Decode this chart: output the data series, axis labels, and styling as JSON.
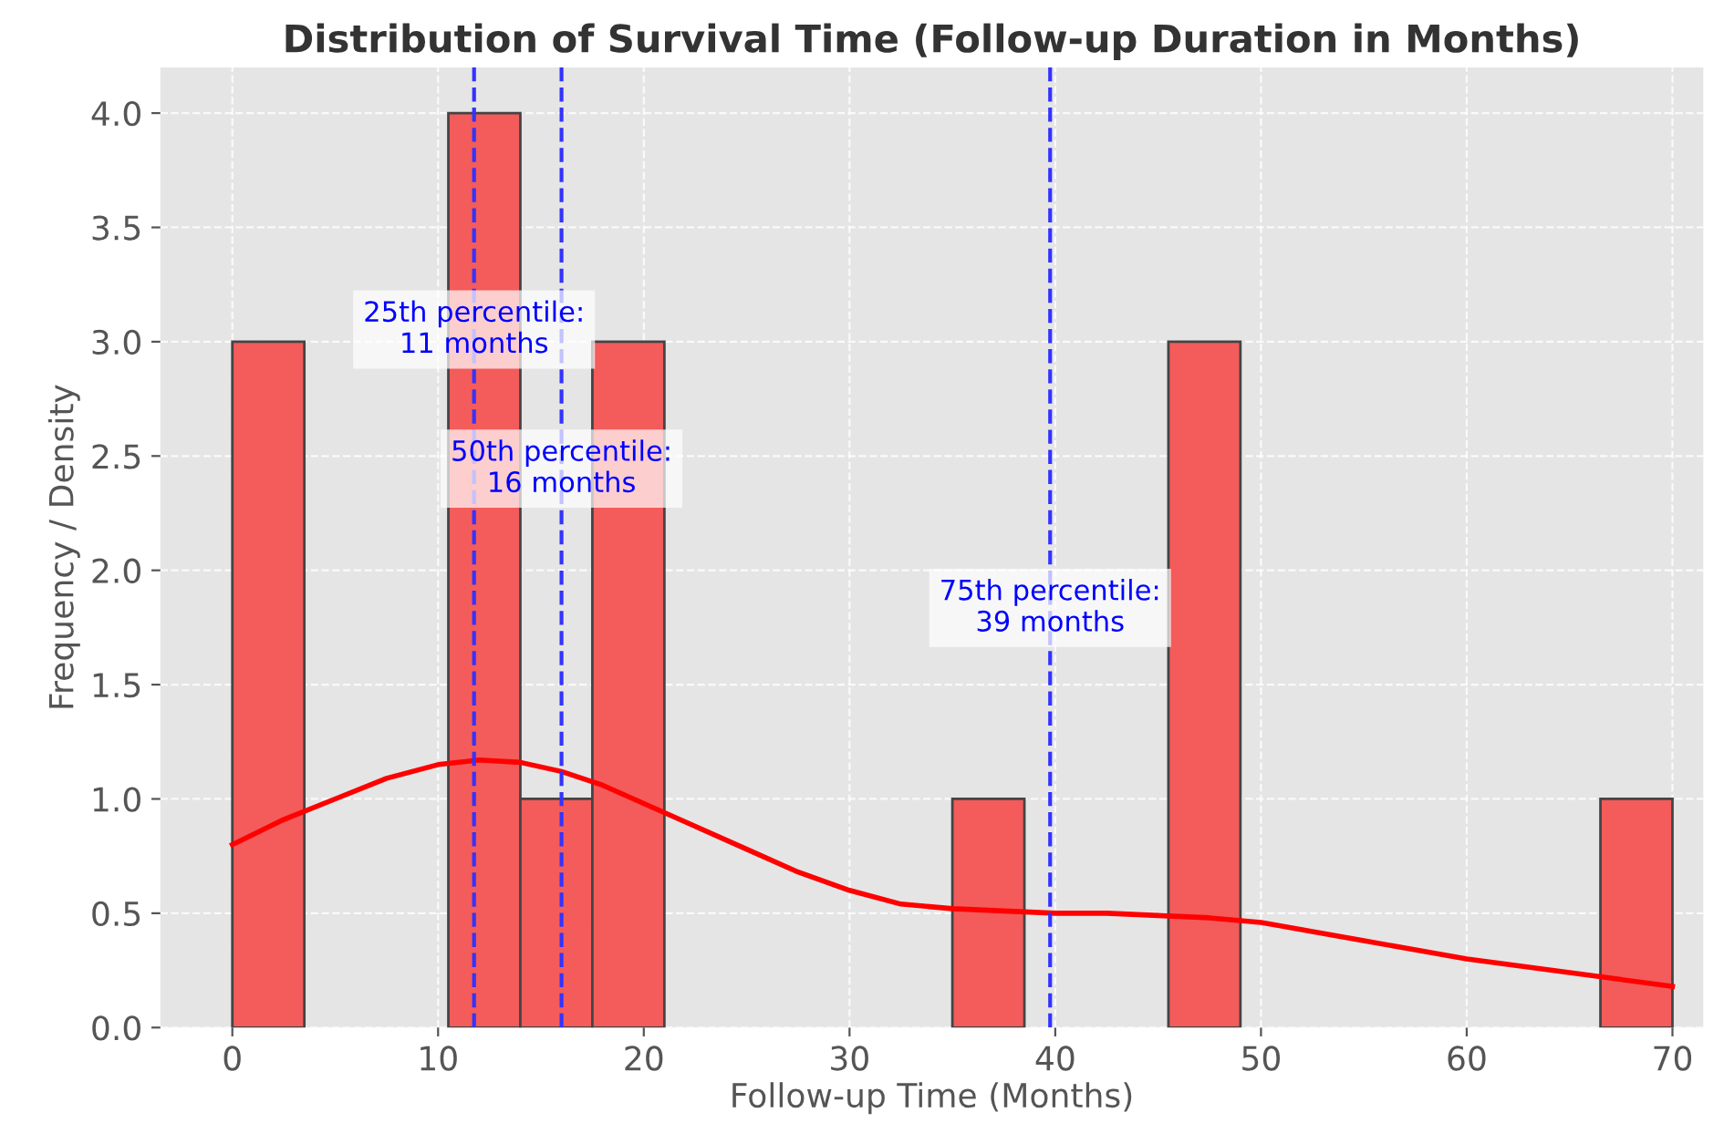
{
  "chart_data": {
    "type": "histogram",
    "title": "Distribution of Survival Time (Follow-up Duration in Months)",
    "xlabel": "Follow-up Time (Months)",
    "ylabel": "Frequency / Density",
    "bins": [
      0,
      3.5,
      7,
      10.5,
      14,
      17.5,
      21,
      24.5,
      28,
      31.5,
      35,
      38.5,
      42,
      45.5,
      49,
      52.5,
      56,
      59.5,
      63,
      66.5,
      70
    ],
    "values": [
      3,
      0,
      0,
      4,
      1,
      3,
      0,
      0,
      0,
      0,
      1,
      0,
      0,
      3,
      0,
      0,
      0,
      0,
      0,
      1
    ],
    "color": "#f45b5b",
    "series": [
      {
        "type": "line",
        "color": "#ff0000",
        "x": [
          0,
          2.5,
          5,
          7.5,
          10,
          12,
          14,
          16,
          18,
          20,
          22.5,
          25,
          27.5,
          30,
          32.5,
          35,
          37.5,
          40,
          42.5,
          45,
          47.5,
          50,
          52.5,
          55,
          57.5,
          60,
          62.5,
          65,
          67.5,
          70
        ],
        "values": [
          0.8,
          0.91,
          1.0,
          1.09,
          1.15,
          1.17,
          1.16,
          1.12,
          1.06,
          0.98,
          0.88,
          0.78,
          0.68,
          0.6,
          0.54,
          0.52,
          0.51,
          0.5,
          0.5,
          0.49,
          0.48,
          0.46,
          0.42,
          0.38,
          0.34,
          0.3,
          0.27,
          0.24,
          0.21,
          0.18
        ]
      }
    ],
    "ref_lines": [
      {
        "axis": "x",
        "value": 11.75,
        "color": "#3333ff",
        "line_style": "dashed"
      },
      {
        "axis": "x",
        "value": 16,
        "color": "#3333ff",
        "line_style": "dashed"
      },
      {
        "axis": "x",
        "value": 39.75,
        "color": "#3333ff",
        "line_style": "dashed"
      }
    ],
    "annotations": [
      "25th percentile:\n11 months",
      "50th percentile:\n16 months",
      "75th percentile:\n39 months"
    ],
    "xlim": [
      -3.5,
      71.5
    ],
    "ylim": [
      0,
      4.2
    ],
    "xticks": [
      0,
      10,
      20,
      30,
      40,
      50,
      60,
      70
    ],
    "yticks": [
      {
        "value": 0,
        "label": "0.0"
      },
      {
        "value": 0.5,
        "label": "0.5"
      },
      {
        "value": 1,
        "label": "1.0"
      },
      {
        "value": 1.5,
        "label": "1.5"
      },
      {
        "value": 2,
        "label": "2.0"
      },
      {
        "value": 2.5,
        "label": "2.5"
      },
      {
        "value": 3,
        "label": "3.0"
      },
      {
        "value": 3.5,
        "label": "3.5"
      },
      {
        "value": 4,
        "label": "4.0"
      }
    ],
    "grid": true,
    "legend": false
  }
}
